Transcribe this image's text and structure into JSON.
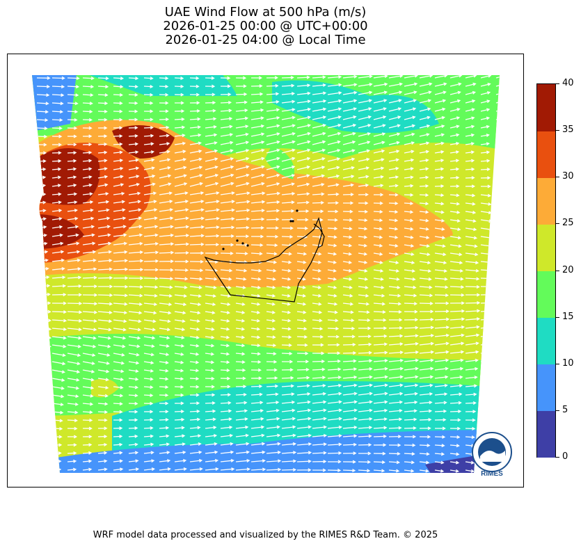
{
  "title": {
    "line1": "UAE Wind Flow at 500 hPa (m/s)",
    "line2": "2026-01-25 00:00 @ UTC+00:00",
    "line3": "2026-01-25 04:00 @ Local Time"
  },
  "colorbar": {
    "ticks": [
      "0",
      "5",
      "10",
      "15",
      "20",
      "25",
      "30",
      "35",
      "40"
    ],
    "range": [
      0,
      40
    ],
    "bins": [
      {
        "from": 0,
        "to": 5,
        "color": "#3e3fa6"
      },
      {
        "from": 5,
        "to": 10,
        "color": "#4694fb"
      },
      {
        "from": 10,
        "to": 15,
        "color": "#1fdcc3"
      },
      {
        "from": 15,
        "to": 20,
        "color": "#63fb5a"
      },
      {
        "from": 20,
        "to": 25,
        "color": "#cfe82a"
      },
      {
        "from": 25,
        "to": 30,
        "color": "#fdab37"
      },
      {
        "from": 30,
        "to": 35,
        "color": "#e9500f"
      },
      {
        "from": 35,
        "to": 40,
        "color": "#a11a04"
      }
    ]
  },
  "map": {
    "wind_vector_color": "#ffffff",
    "country_outline_color": "#000000",
    "prevailing_wind": "westerly"
  },
  "logo": {
    "text": "RIMES",
    "ring_text": "Regional Integrated Multi-Hazard Early Warning System",
    "color": "#1c4f8c"
  },
  "footer": {
    "text": "WRF model data processed and visualized by the RIMES R&D Team. © 2025"
  }
}
